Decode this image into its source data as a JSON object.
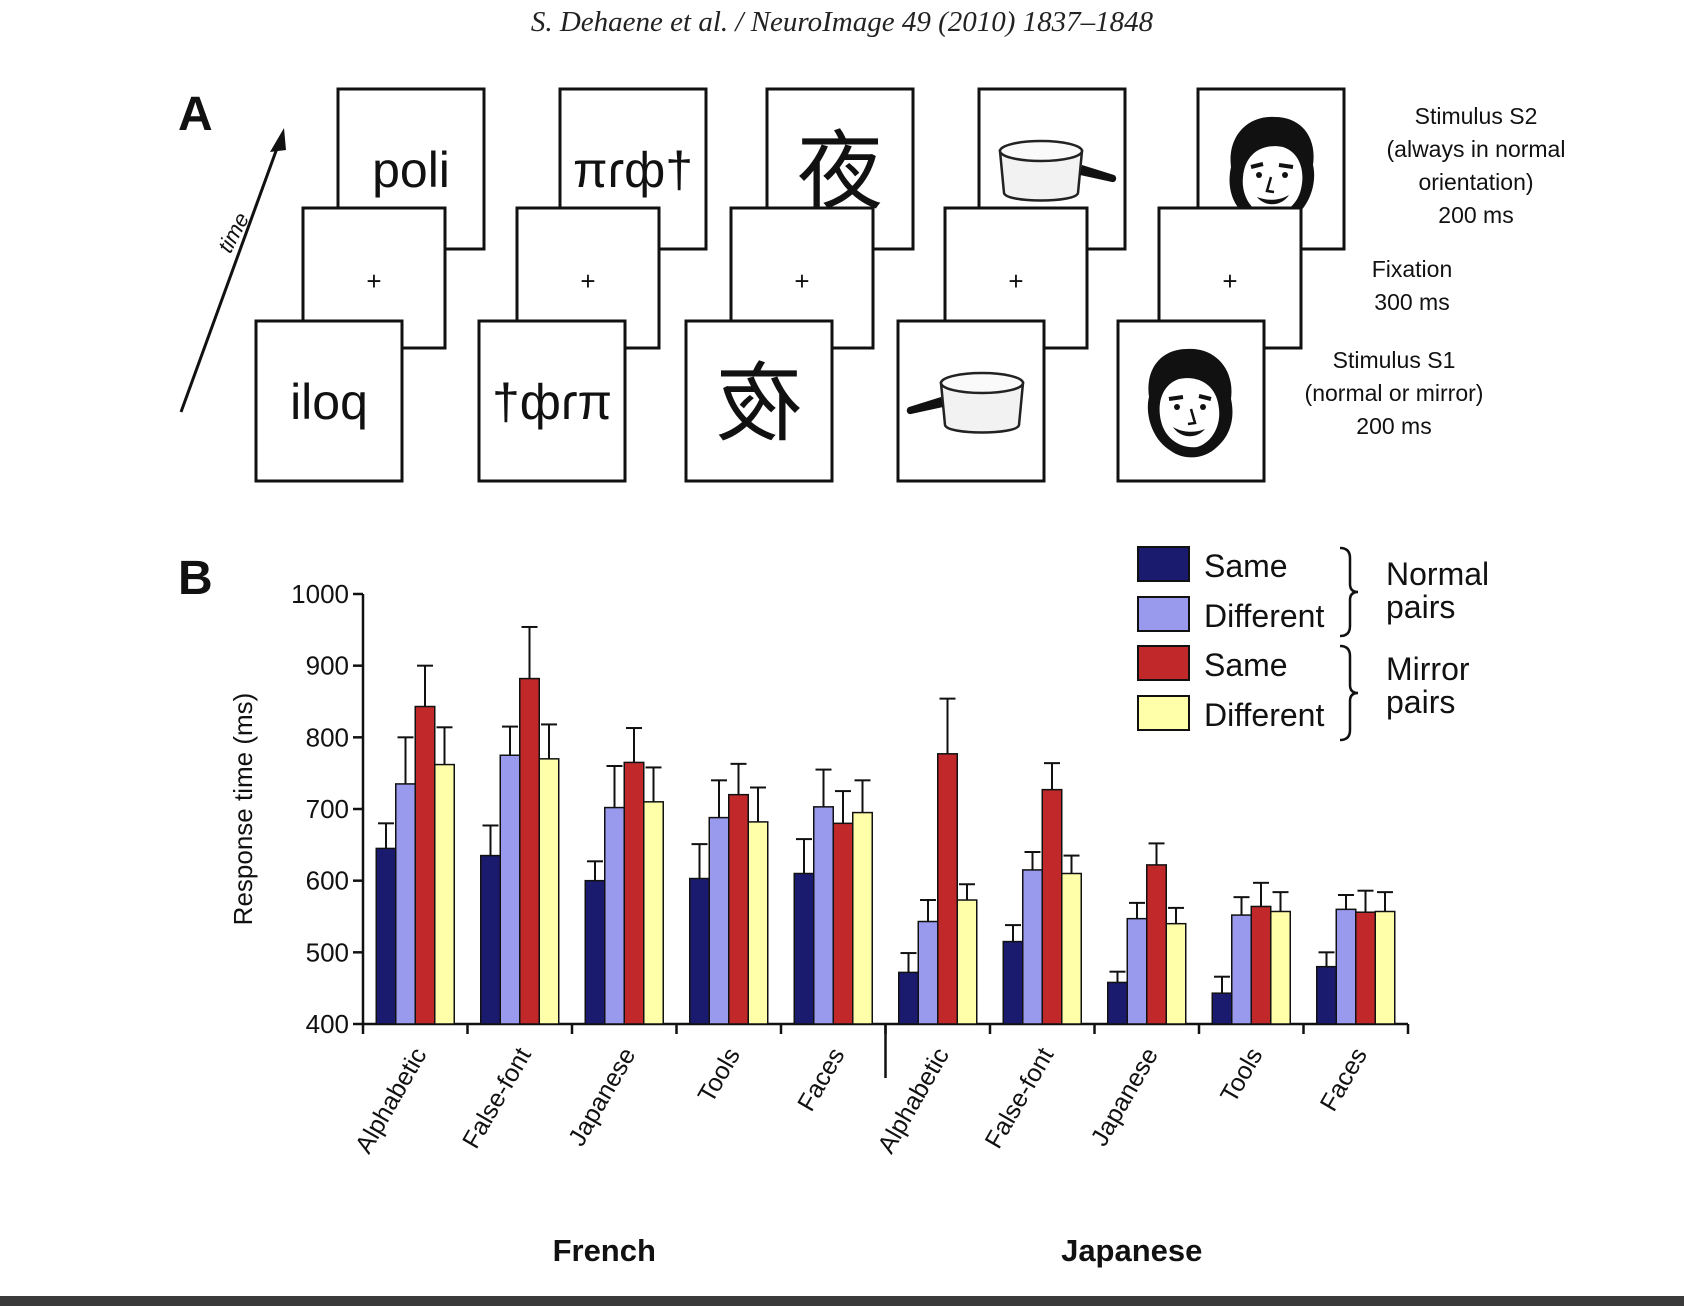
{
  "header": "S. Dehaene et al. / NeuroImage 49 (2010) 1837–1848",
  "panelA": {
    "label": "A",
    "time_label": "time",
    "fixation_symbol": "+",
    "s2_stimuli": [
      "poli",
      "πɾф†",
      "夜",
      "pan-icon",
      "face-icon"
    ],
    "s1_stimuli": [
      "iloq",
      "†фɾπ",
      "夜",
      "pan-icon",
      "face-icon"
    ],
    "labels": {
      "s2": [
        "Stimulus S2",
        "(always in normal",
        "orientation)",
        "200 ms"
      ],
      "fixation": [
        "Fixation",
        "300 ms"
      ],
      "s1": [
        "Stimulus S1",
        "(normal or mirror)",
        "200 ms"
      ]
    }
  },
  "panelB": {
    "label": "B",
    "legend": {
      "entries": [
        {
          "label": "Same",
          "color": "#1a1a6e"
        },
        {
          "label": "Different",
          "color": "#9999ee"
        },
        {
          "label": "Same",
          "color": "#c0282a"
        },
        {
          "label": "Different",
          "color": "#ffffaa"
        }
      ],
      "groups": [
        [
          "Normal",
          "pairs"
        ],
        [
          "Mirror",
          "pairs"
        ]
      ]
    },
    "groups": [
      "French",
      "Japanese"
    ]
  },
  "chart_data": {
    "type": "bar",
    "ylabel": "Response time (ms)",
    "ylim": [
      400,
      1000
    ],
    "yticks": [
      400,
      500,
      600,
      700,
      800,
      900,
      1000
    ],
    "categories": [
      "Alphabetic",
      "False-font",
      "Japanese",
      "Tools",
      "Faces",
      "Alphabetic",
      "False-font",
      "Japanese",
      "Tools",
      "Faces"
    ],
    "groups": [
      {
        "name": "French",
        "categories": [
          0,
          1,
          2,
          3,
          4
        ]
      },
      {
        "name": "Japanese",
        "categories": [
          5,
          6,
          7,
          8,
          9
        ]
      }
    ],
    "series": [
      {
        "color": "#1a1a6e",
        "values": [
          645,
          635,
          600,
          603,
          610,
          472,
          515,
          458,
          443,
          480
        ],
        "errors": [
          35,
          42,
          27,
          48,
          48,
          27,
          23,
          15,
          23,
          20
        ]
      },
      {
        "color": "#9999ee",
        "values": [
          735,
          775,
          702,
          688,
          703,
          543,
          615,
          547,
          552,
          560
        ],
        "errors": [
          65,
          40,
          58,
          52,
          52,
          30,
          25,
          22,
          25,
          20
        ]
      },
      {
        "color": "#c0282a",
        "values": [
          843,
          882,
          765,
          720,
          680,
          777,
          727,
          622,
          564,
          556
        ],
        "errors": [
          57,
          72,
          48,
          43,
          45,
          77,
          37,
          30,
          33,
          30
        ]
      },
      {
        "color": "#ffffaa",
        "values": [
          762,
          770,
          710,
          682,
          695,
          573,
          610,
          540,
          557,
          557
        ],
        "errors": [
          52,
          48,
          48,
          48,
          45,
          22,
          25,
          22,
          27,
          27
        ]
      }
    ]
  }
}
